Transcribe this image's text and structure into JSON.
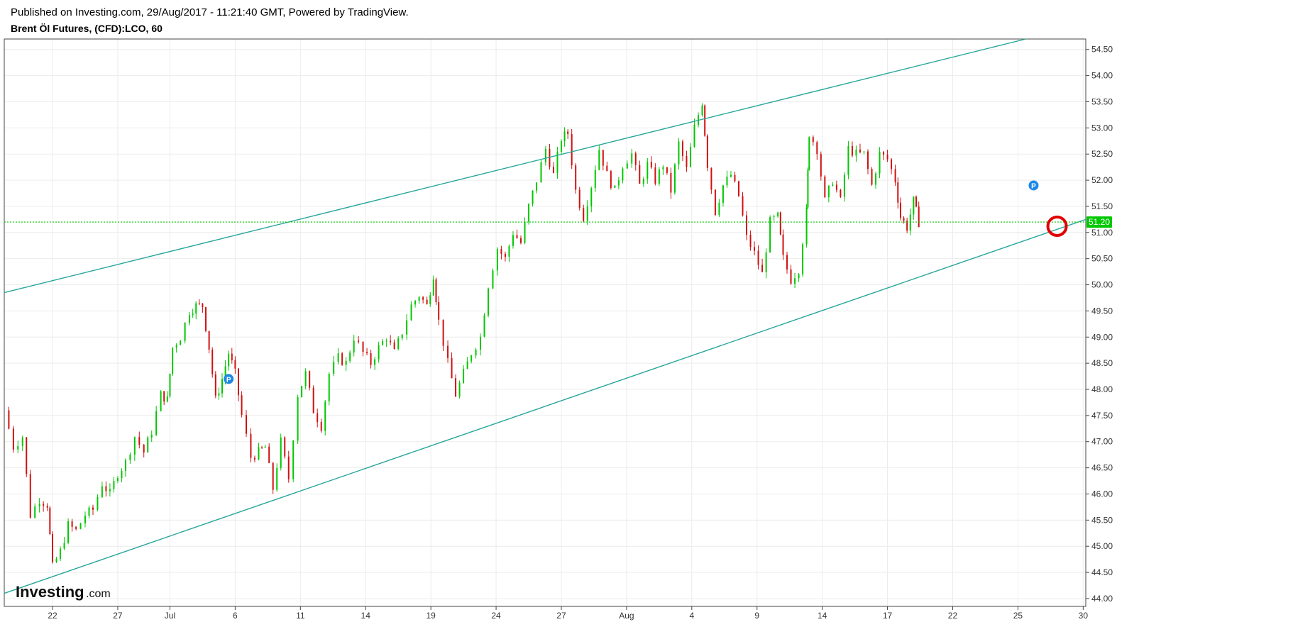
{
  "header": {
    "published": "Published on Investing.com, 29/Aug/2017 - 11:21:40 GMT, Powered by TradingView.",
    "symbol": "Brent Öl Futures, (CFD):LCO, 60"
  },
  "logo": {
    "main": "Investing",
    "suffix": ".com"
  },
  "colors": {
    "up": "#00c800",
    "down": "#d01010",
    "trendline": "#26a69a",
    "price_line": "#00c800",
    "pivot_marker": "#1e88e5",
    "highlight_circle": "#e00000"
  },
  "chart_data": {
    "type": "candlestick",
    "interval": "60",
    "ylim": [
      43.85,
      54.7
    ],
    "y_ticks": [
      "44.00",
      "44.50",
      "45.00",
      "45.50",
      "46.00",
      "46.50",
      "47.00",
      "47.50",
      "48.00",
      "48.50",
      "49.00",
      "49.50",
      "50.00",
      "50.50",
      "51.00",
      "51.50",
      "52.00",
      "52.50",
      "53.00",
      "53.50",
      "54.00",
      "54.50"
    ],
    "x_ticks": [
      {
        "label": "22",
        "day": 22
      },
      {
        "label": "27",
        "day": 27
      },
      {
        "label": "Jul",
        "day": 31
      },
      {
        "label": "6",
        "day": 36
      },
      {
        "label": "11",
        "day": 41
      },
      {
        "label": "14",
        "day": 46
      },
      {
        "label": "19",
        "day": 51
      },
      {
        "label": "24",
        "day": 56
      },
      {
        "label": "27",
        "day": 61
      },
      {
        "label": "Aug",
        "day": 66
      },
      {
        "label": "4",
        "day": 71
      },
      {
        "label": "9",
        "day": 76
      },
      {
        "label": "14",
        "day": 81
      },
      {
        "label": "17",
        "day": 86
      },
      {
        "label": "22",
        "day": 91
      },
      {
        "label": "25",
        "day": 96
      },
      {
        "label": "30",
        "day": 101
      }
    ],
    "xlim": [
      18.3,
      101.2
    ],
    "current_price": {
      "label": "51.20",
      "value": 51.2
    },
    "price_path": [
      [
        18.3,
        47.6
      ],
      [
        19.0,
        46.9
      ],
      [
        19.7,
        47.1
      ],
      [
        20.3,
        45.6
      ],
      [
        21.0,
        45.9
      ],
      [
        21.6,
        45.8
      ],
      [
        22.0,
        44.6
      ],
      [
        22.6,
        44.9
      ],
      [
        23.2,
        45.4
      ],
      [
        23.8,
        45.3
      ],
      [
        24.5,
        45.6
      ],
      [
        25.1,
        45.7
      ],
      [
        25.8,
        46.2
      ],
      [
        26.4,
        46.0
      ],
      [
        27.0,
        46.4
      ],
      [
        27.6,
        46.6
      ],
      [
        28.3,
        47.1
      ],
      [
        29.0,
        46.8
      ],
      [
        29.6,
        47.2
      ],
      [
        30.3,
        47.9
      ],
      [
        30.8,
        47.8
      ],
      [
        31.2,
        48.8
      ],
      [
        31.8,
        49.0
      ],
      [
        32.5,
        49.5
      ],
      [
        33.0,
        49.6
      ],
      [
        33.5,
        49.6
      ],
      [
        34.0,
        48.8
      ],
      [
        34.5,
        47.8
      ],
      [
        35.0,
        48.2
      ],
      [
        35.5,
        48.7
      ],
      [
        36.0,
        48.3
      ],
      [
        36.5,
        47.5
      ],
      [
        37.2,
        46.7
      ],
      [
        37.8,
        46.8
      ],
      [
        38.3,
        46.9
      ],
      [
        38.9,
        46.1
      ],
      [
        39.5,
        47.0
      ],
      [
        40.1,
        46.3
      ],
      [
        40.8,
        47.9
      ],
      [
        41.4,
        48.3
      ],
      [
        42.0,
        47.6
      ],
      [
        42.6,
        47.3
      ],
      [
        43.2,
        48.3
      ],
      [
        43.9,
        48.6
      ],
      [
        44.5,
        48.5
      ],
      [
        45.1,
        49.0
      ],
      [
        45.8,
        48.7
      ],
      [
        46.4,
        48.5
      ],
      [
        47.0,
        48.8
      ],
      [
        47.6,
        49.0
      ],
      [
        48.2,
        48.7
      ],
      [
        48.8,
        49.1
      ],
      [
        49.5,
        49.6
      ],
      [
        50.1,
        49.8
      ],
      [
        50.7,
        49.6
      ],
      [
        51.2,
        50.2
      ],
      [
        51.6,
        49.3
      ],
      [
        52.3,
        48.5
      ],
      [
        52.9,
        47.9
      ],
      [
        53.5,
        48.3
      ],
      [
        54.1,
        48.7
      ],
      [
        54.8,
        49.0
      ],
      [
        55.4,
        50.0
      ],
      [
        56.1,
        50.7
      ],
      [
        56.7,
        50.5
      ],
      [
        57.3,
        51.0
      ],
      [
        57.9,
        50.8
      ],
      [
        58.5,
        51.5
      ],
      [
        59.1,
        52.0
      ],
      [
        59.8,
        52.6
      ],
      [
        60.4,
        52.1
      ],
      [
        61.0,
        52.8
      ],
      [
        61.5,
        52.9
      ],
      [
        62.1,
        51.8
      ],
      [
        62.7,
        51.3
      ],
      [
        63.3,
        51.9
      ],
      [
        63.9,
        52.6
      ],
      [
        64.5,
        52.1
      ],
      [
        65.1,
        51.8
      ],
      [
        65.7,
        52.3
      ],
      [
        66.4,
        52.5
      ],
      [
        67.0,
        51.9
      ],
      [
        67.6,
        52.3
      ],
      [
        68.2,
        52.0
      ],
      [
        68.8,
        52.3
      ],
      [
        69.4,
        51.8
      ],
      [
        70.0,
        52.7
      ],
      [
        70.6,
        52.2
      ],
      [
        71.2,
        53.0
      ],
      [
        71.8,
        53.5
      ],
      [
        72.2,
        52.3
      ],
      [
        72.8,
        51.4
      ],
      [
        73.4,
        51.9
      ],
      [
        74.0,
        52.1
      ],
      [
        74.6,
        51.7
      ],
      [
        75.2,
        50.9
      ],
      [
        75.8,
        50.6
      ],
      [
        76.4,
        50.2
      ],
      [
        77.0,
        51.2
      ],
      [
        77.6,
        51.3
      ],
      [
        78.0,
        50.5
      ],
      [
        78.6,
        50.1
      ],
      [
        79.2,
        50.3
      ],
      [
        79.8,
        51.4
      ],
      [
        80.0,
        52.9
      ],
      [
        80.6,
        52.6
      ],
      [
        81.2,
        51.6
      ],
      [
        81.8,
        52.0
      ],
      [
        82.4,
        51.6
      ],
      [
        83.0,
        52.6
      ],
      [
        83.6,
        52.5
      ],
      [
        84.2,
        52.5
      ],
      [
        84.8,
        51.9
      ],
      [
        85.4,
        52.5
      ],
      [
        86.0,
        52.4
      ],
      [
        86.6,
        52.0
      ],
      [
        87.0,
        51.3
      ],
      [
        87.5,
        51.1
      ],
      [
        88.0,
        51.6
      ],
      [
        88.4,
        51.2
      ]
    ],
    "trendlines": [
      {
        "name": "upper channel",
        "points": [
          [
            18.3,
            49.85
          ],
          [
            96.6,
            54.7
          ]
        ]
      },
      {
        "name": "lower channel",
        "points": [
          [
            18.3,
            44.1
          ],
          [
            101.2,
            51.25
          ]
        ]
      }
    ],
    "markers": [
      {
        "label": "P",
        "day": 35.5,
        "price": 48.2
      },
      {
        "label": "P",
        "day": 97.2,
        "price": 51.9
      }
    ],
    "highlight": {
      "day": 99.0,
      "price": 51.12
    }
  }
}
